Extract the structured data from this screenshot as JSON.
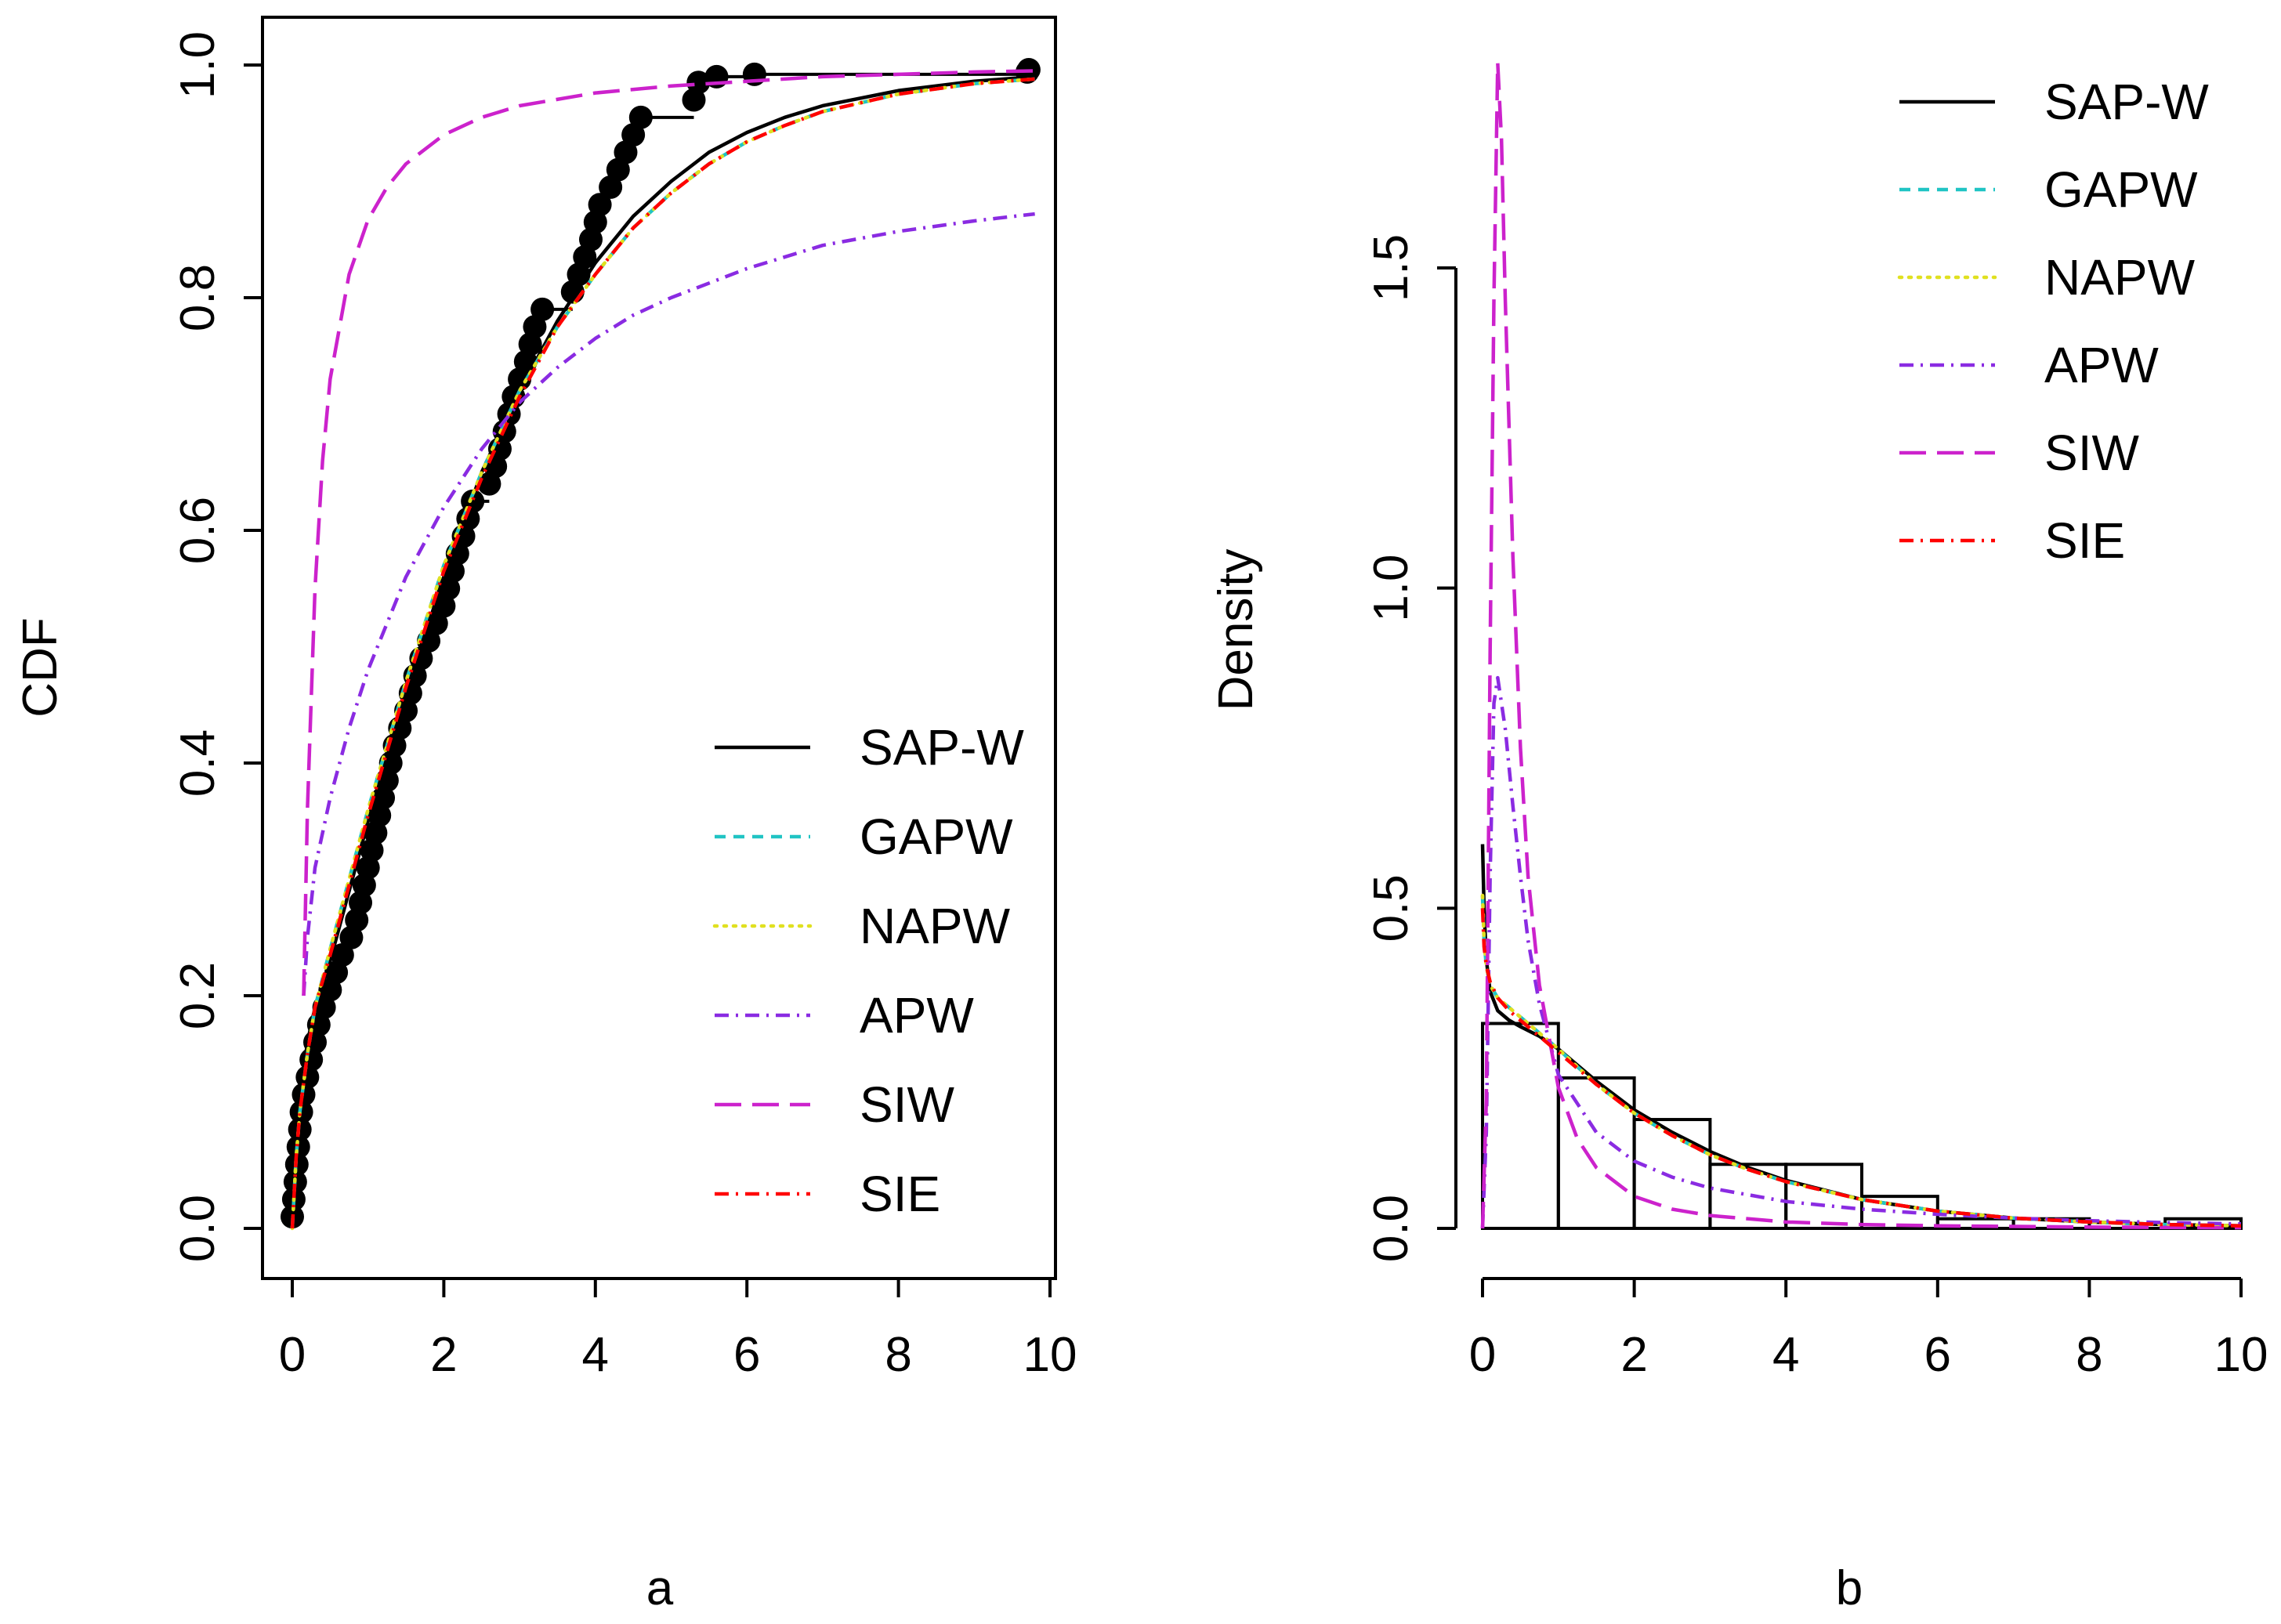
{
  "chart_data": [
    {
      "type": "line",
      "panel": "a",
      "xlabel": "a",
      "ylabel": "CDF",
      "xlim": [
        0,
        10
      ],
      "ylim": [
        0,
        1
      ],
      "x_ticks": [
        "0",
        "2",
        "4",
        "6",
        "8",
        "10"
      ],
      "y_ticks": [
        "0.0",
        "0.2",
        "0.4",
        "0.6",
        "0.8",
        "1.0"
      ],
      "legend_position": "bottom-right",
      "empirical_points": {
        "name": "empirical CDF",
        "x": [
          0.0,
          0.02,
          0.04,
          0.06,
          0.08,
          0.1,
          0.12,
          0.15,
          0.2,
          0.25,
          0.3,
          0.35,
          0.42,
          0.5,
          0.58,
          0.66,
          0.78,
          0.85,
          0.9,
          0.95,
          1.0,
          1.05,
          1.1,
          1.15,
          1.2,
          1.25,
          1.3,
          1.35,
          1.42,
          1.5,
          1.56,
          1.62,
          1.7,
          1.8,
          1.9,
          2.0,
          2.06,
          2.12,
          2.18,
          2.26,
          2.32,
          2.38,
          2.6,
          2.68,
          2.74,
          2.8,
          2.86,
          2.92,
          3.0,
          3.08,
          3.14,
          3.2,
          3.3,
          3.7,
          3.78,
          3.86,
          3.94,
          4.0,
          4.06,
          4.2,
          4.3,
          4.4,
          4.5,
          4.6,
          5.3,
          5.36,
          5.6,
          6.1,
          9.7,
          9.72
        ],
        "y": [
          0.01,
          0.025,
          0.04,
          0.055,
          0.07,
          0.085,
          0.1,
          0.115,
          0.13,
          0.145,
          0.16,
          0.175,
          0.19,
          0.205,
          0.22,
          0.235,
          0.25,
          0.265,
          0.28,
          0.295,
          0.31,
          0.325,
          0.34,
          0.355,
          0.37,
          0.385,
          0.4,
          0.415,
          0.43,
          0.445,
          0.46,
          0.475,
          0.49,
          0.505,
          0.52,
          0.535,
          0.55,
          0.565,
          0.58,
          0.595,
          0.61,
          0.625,
          0.64,
          0.655,
          0.67,
          0.685,
          0.7,
          0.715,
          0.73,
          0.745,
          0.76,
          0.775,
          0.79,
          0.805,
          0.82,
          0.835,
          0.85,
          0.865,
          0.88,
          0.895,
          0.91,
          0.925,
          0.94,
          0.955,
          0.97,
          0.985,
          0.99,
          0.992,
          0.994,
          0.996
        ]
      },
      "series": [
        {
          "name": "SAP-W",
          "color": "#000000",
          "dash": "solid",
          "x": [
            0,
            0.05,
            0.1,
            0.2,
            0.3,
            0.5,
            0.75,
            1,
            1.5,
            2,
            2.5,
            3,
            3.5,
            4,
            4.5,
            5,
            5.5,
            6,
            6.5,
            7,
            8,
            9,
            9.8
          ],
          "y": [
            0,
            0.07,
            0.11,
            0.16,
            0.19,
            0.23,
            0.29,
            0.35,
            0.46,
            0.56,
            0.65,
            0.72,
            0.78,
            0.83,
            0.87,
            0.9,
            0.925,
            0.942,
            0.955,
            0.965,
            0.978,
            0.986,
            0.99
          ]
        },
        {
          "name": "GAPW",
          "color": "#20c4c4",
          "dash": "short",
          "x": [
            0,
            0.05,
            0.1,
            0.2,
            0.3,
            0.5,
            0.75,
            1,
            1.5,
            2,
            2.5,
            3,
            3.5,
            4,
            4.5,
            5,
            5.5,
            6,
            6.5,
            7,
            8,
            9,
            9.8
          ],
          "y": [
            0,
            0.06,
            0.1,
            0.15,
            0.19,
            0.24,
            0.3,
            0.36,
            0.47,
            0.57,
            0.65,
            0.72,
            0.775,
            0.82,
            0.86,
            0.89,
            0.915,
            0.934,
            0.948,
            0.96,
            0.975,
            0.984,
            0.988
          ]
        },
        {
          "name": "NAPW",
          "color": "#e0e020",
          "dash": "dotted",
          "x": [
            0,
            0.05,
            0.1,
            0.2,
            0.3,
            0.5,
            0.75,
            1,
            1.5,
            2,
            2.5,
            3,
            3.5,
            4,
            4.5,
            5,
            5.5,
            6,
            6.5,
            7,
            8,
            9,
            9.8
          ],
          "y": [
            0,
            0.06,
            0.1,
            0.15,
            0.19,
            0.24,
            0.3,
            0.36,
            0.47,
            0.57,
            0.65,
            0.72,
            0.775,
            0.82,
            0.86,
            0.89,
            0.915,
            0.934,
            0.948,
            0.96,
            0.975,
            0.984,
            0.988
          ]
        },
        {
          "name": "APW",
          "color": "#8a2be2",
          "dash": "dashdot",
          "x": [
            0.15,
            0.2,
            0.3,
            0.5,
            0.75,
            1,
            1.5,
            2,
            2.5,
            3,
            3.5,
            4,
            4.5,
            5,
            6,
            7,
            8,
            9,
            9.8
          ],
          "y": [
            0.2,
            0.25,
            0.31,
            0.37,
            0.43,
            0.48,
            0.56,
            0.62,
            0.67,
            0.71,
            0.74,
            0.765,
            0.785,
            0.8,
            0.825,
            0.845,
            0.857,
            0.866,
            0.872
          ]
        },
        {
          "name": "SIW",
          "color": "#cc22cc",
          "dash": "long",
          "x": [
            0.15,
            0.2,
            0.3,
            0.4,
            0.5,
            0.75,
            1,
            1.25,
            1.5,
            2,
            2.5,
            3,
            4,
            5,
            6,
            7,
            8,
            9,
            9.8
          ],
          "y": [
            0.2,
            0.36,
            0.55,
            0.66,
            0.73,
            0.82,
            0.867,
            0.895,
            0.915,
            0.94,
            0.955,
            0.965,
            0.976,
            0.982,
            0.986,
            0.99,
            0.992,
            0.994,
            0.995
          ]
        },
        {
          "name": "SIE",
          "color": "#ff0000",
          "dash": "dashdot",
          "x": [
            0,
            0.05,
            0.1,
            0.2,
            0.3,
            0.5,
            0.75,
            1,
            1.5,
            2,
            2.5,
            3,
            3.5,
            4,
            4.5,
            5,
            5.5,
            6,
            6.5,
            7,
            8,
            9,
            9.8
          ],
          "y": [
            0,
            0.06,
            0.1,
            0.15,
            0.19,
            0.235,
            0.295,
            0.355,
            0.465,
            0.565,
            0.645,
            0.715,
            0.775,
            0.82,
            0.86,
            0.89,
            0.915,
            0.934,
            0.948,
            0.96,
            0.975,
            0.984,
            0.988
          ]
        }
      ]
    },
    {
      "type": "line",
      "panel": "b",
      "xlabel": "b",
      "ylabel": "Density",
      "xlim": [
        0,
        10
      ],
      "ylim": [
        0,
        1.5
      ],
      "x_ticks": [
        "0",
        "2",
        "4",
        "6",
        "8",
        "10"
      ],
      "y_ticks": [
        "0.0",
        "0.5",
        "1.0",
        "1.5"
      ],
      "legend_position": "top-right",
      "histogram": {
        "bin_edges": [
          0,
          1,
          2,
          3,
          4,
          5,
          6,
          7,
          8,
          9,
          10
        ],
        "density": [
          0.32,
          0.235,
          0.17,
          0.1,
          0.1,
          0.05,
          0.015,
          0.015,
          0.0,
          0.015
        ]
      },
      "series": [
        {
          "name": "SAP-W",
          "color": "#000000",
          "dash": "solid",
          "x": [
            0,
            0.02,
            0.05,
            0.1,
            0.2,
            0.35,
            0.5,
            0.75,
            1,
            1.5,
            2,
            2.5,
            3,
            3.5,
            4,
            5,
            6,
            7,
            8,
            9,
            10
          ],
          "y": [
            0.6,
            0.5,
            0.42,
            0.37,
            0.34,
            0.325,
            0.315,
            0.3,
            0.28,
            0.23,
            0.185,
            0.15,
            0.12,
            0.095,
            0.075,
            0.045,
            0.027,
            0.016,
            0.01,
            0.006,
            0.004
          ]
        },
        {
          "name": "GAPW",
          "color": "#20c4c4",
          "dash": "short",
          "x": [
            0,
            0.02,
            0.05,
            0.1,
            0.2,
            0.35,
            0.5,
            0.75,
            1,
            1.5,
            2,
            2.5,
            3,
            3.5,
            4,
            5,
            6,
            7,
            8,
            9,
            10
          ],
          "y": [
            0.52,
            0.45,
            0.41,
            0.38,
            0.36,
            0.345,
            0.33,
            0.305,
            0.28,
            0.225,
            0.18,
            0.145,
            0.115,
            0.092,
            0.073,
            0.045,
            0.027,
            0.016,
            0.01,
            0.006,
            0.004
          ]
        },
        {
          "name": "NAPW",
          "color": "#e0e020",
          "dash": "dotted",
          "x": [
            0,
            0.02,
            0.05,
            0.1,
            0.2,
            0.35,
            0.5,
            0.75,
            1,
            1.5,
            2,
            2.5,
            3,
            3.5,
            4,
            5,
            6,
            7,
            8,
            9,
            10
          ],
          "y": [
            0.52,
            0.45,
            0.41,
            0.38,
            0.36,
            0.345,
            0.33,
            0.305,
            0.28,
            0.225,
            0.18,
            0.145,
            0.115,
            0.092,
            0.073,
            0.045,
            0.027,
            0.016,
            0.01,
            0.006,
            0.004
          ]
        },
        {
          "name": "APW",
          "color": "#8a2be2",
          "dash": "dashdot",
          "x": [
            0,
            0.05,
            0.1,
            0.15,
            0.2,
            0.3,
            0.4,
            0.5,
            0.6,
            0.75,
            1,
            1.5,
            2,
            2.5,
            3,
            4,
            5,
            6,
            7,
            8,
            9,
            10
          ],
          "y": [
            0.0,
            0.15,
            0.55,
            0.82,
            0.86,
            0.78,
            0.66,
            0.55,
            0.45,
            0.35,
            0.24,
            0.15,
            0.105,
            0.08,
            0.063,
            0.042,
            0.03,
            0.022,
            0.016,
            0.012,
            0.009,
            0.007
          ]
        },
        {
          "name": "SIW",
          "color": "#cc22cc",
          "dash": "long",
          "x": [
            0,
            0.05,
            0.1,
            0.15,
            0.2,
            0.25,
            0.3,
            0.4,
            0.5,
            0.6,
            0.75,
            1,
            1.25,
            1.5,
            2,
            2.5,
            3,
            4,
            5,
            6,
            7,
            8,
            9,
            10
          ],
          "y": [
            0.0,
            0.2,
            0.9,
            1.45,
            1.82,
            1.7,
            1.45,
            1.05,
            0.75,
            0.55,
            0.38,
            0.22,
            0.14,
            0.095,
            0.05,
            0.03,
            0.02,
            0.01,
            0.006,
            0.004,
            0.003,
            0.002,
            0.0015,
            0.001
          ]
        },
        {
          "name": "SIE",
          "color": "#ff0000",
          "dash": "dashdot",
          "x": [
            0,
            0.02,
            0.05,
            0.1,
            0.2,
            0.35,
            0.5,
            0.75,
            1,
            1.5,
            2,
            2.5,
            3,
            3.5,
            4,
            5,
            6,
            7,
            8,
            9,
            10
          ],
          "y": [
            0.5,
            0.44,
            0.41,
            0.385,
            0.36,
            0.34,
            0.325,
            0.3,
            0.275,
            0.225,
            0.18,
            0.145,
            0.115,
            0.092,
            0.073,
            0.045,
            0.027,
            0.016,
            0.01,
            0.006,
            0.004
          ]
        }
      ]
    }
  ]
}
